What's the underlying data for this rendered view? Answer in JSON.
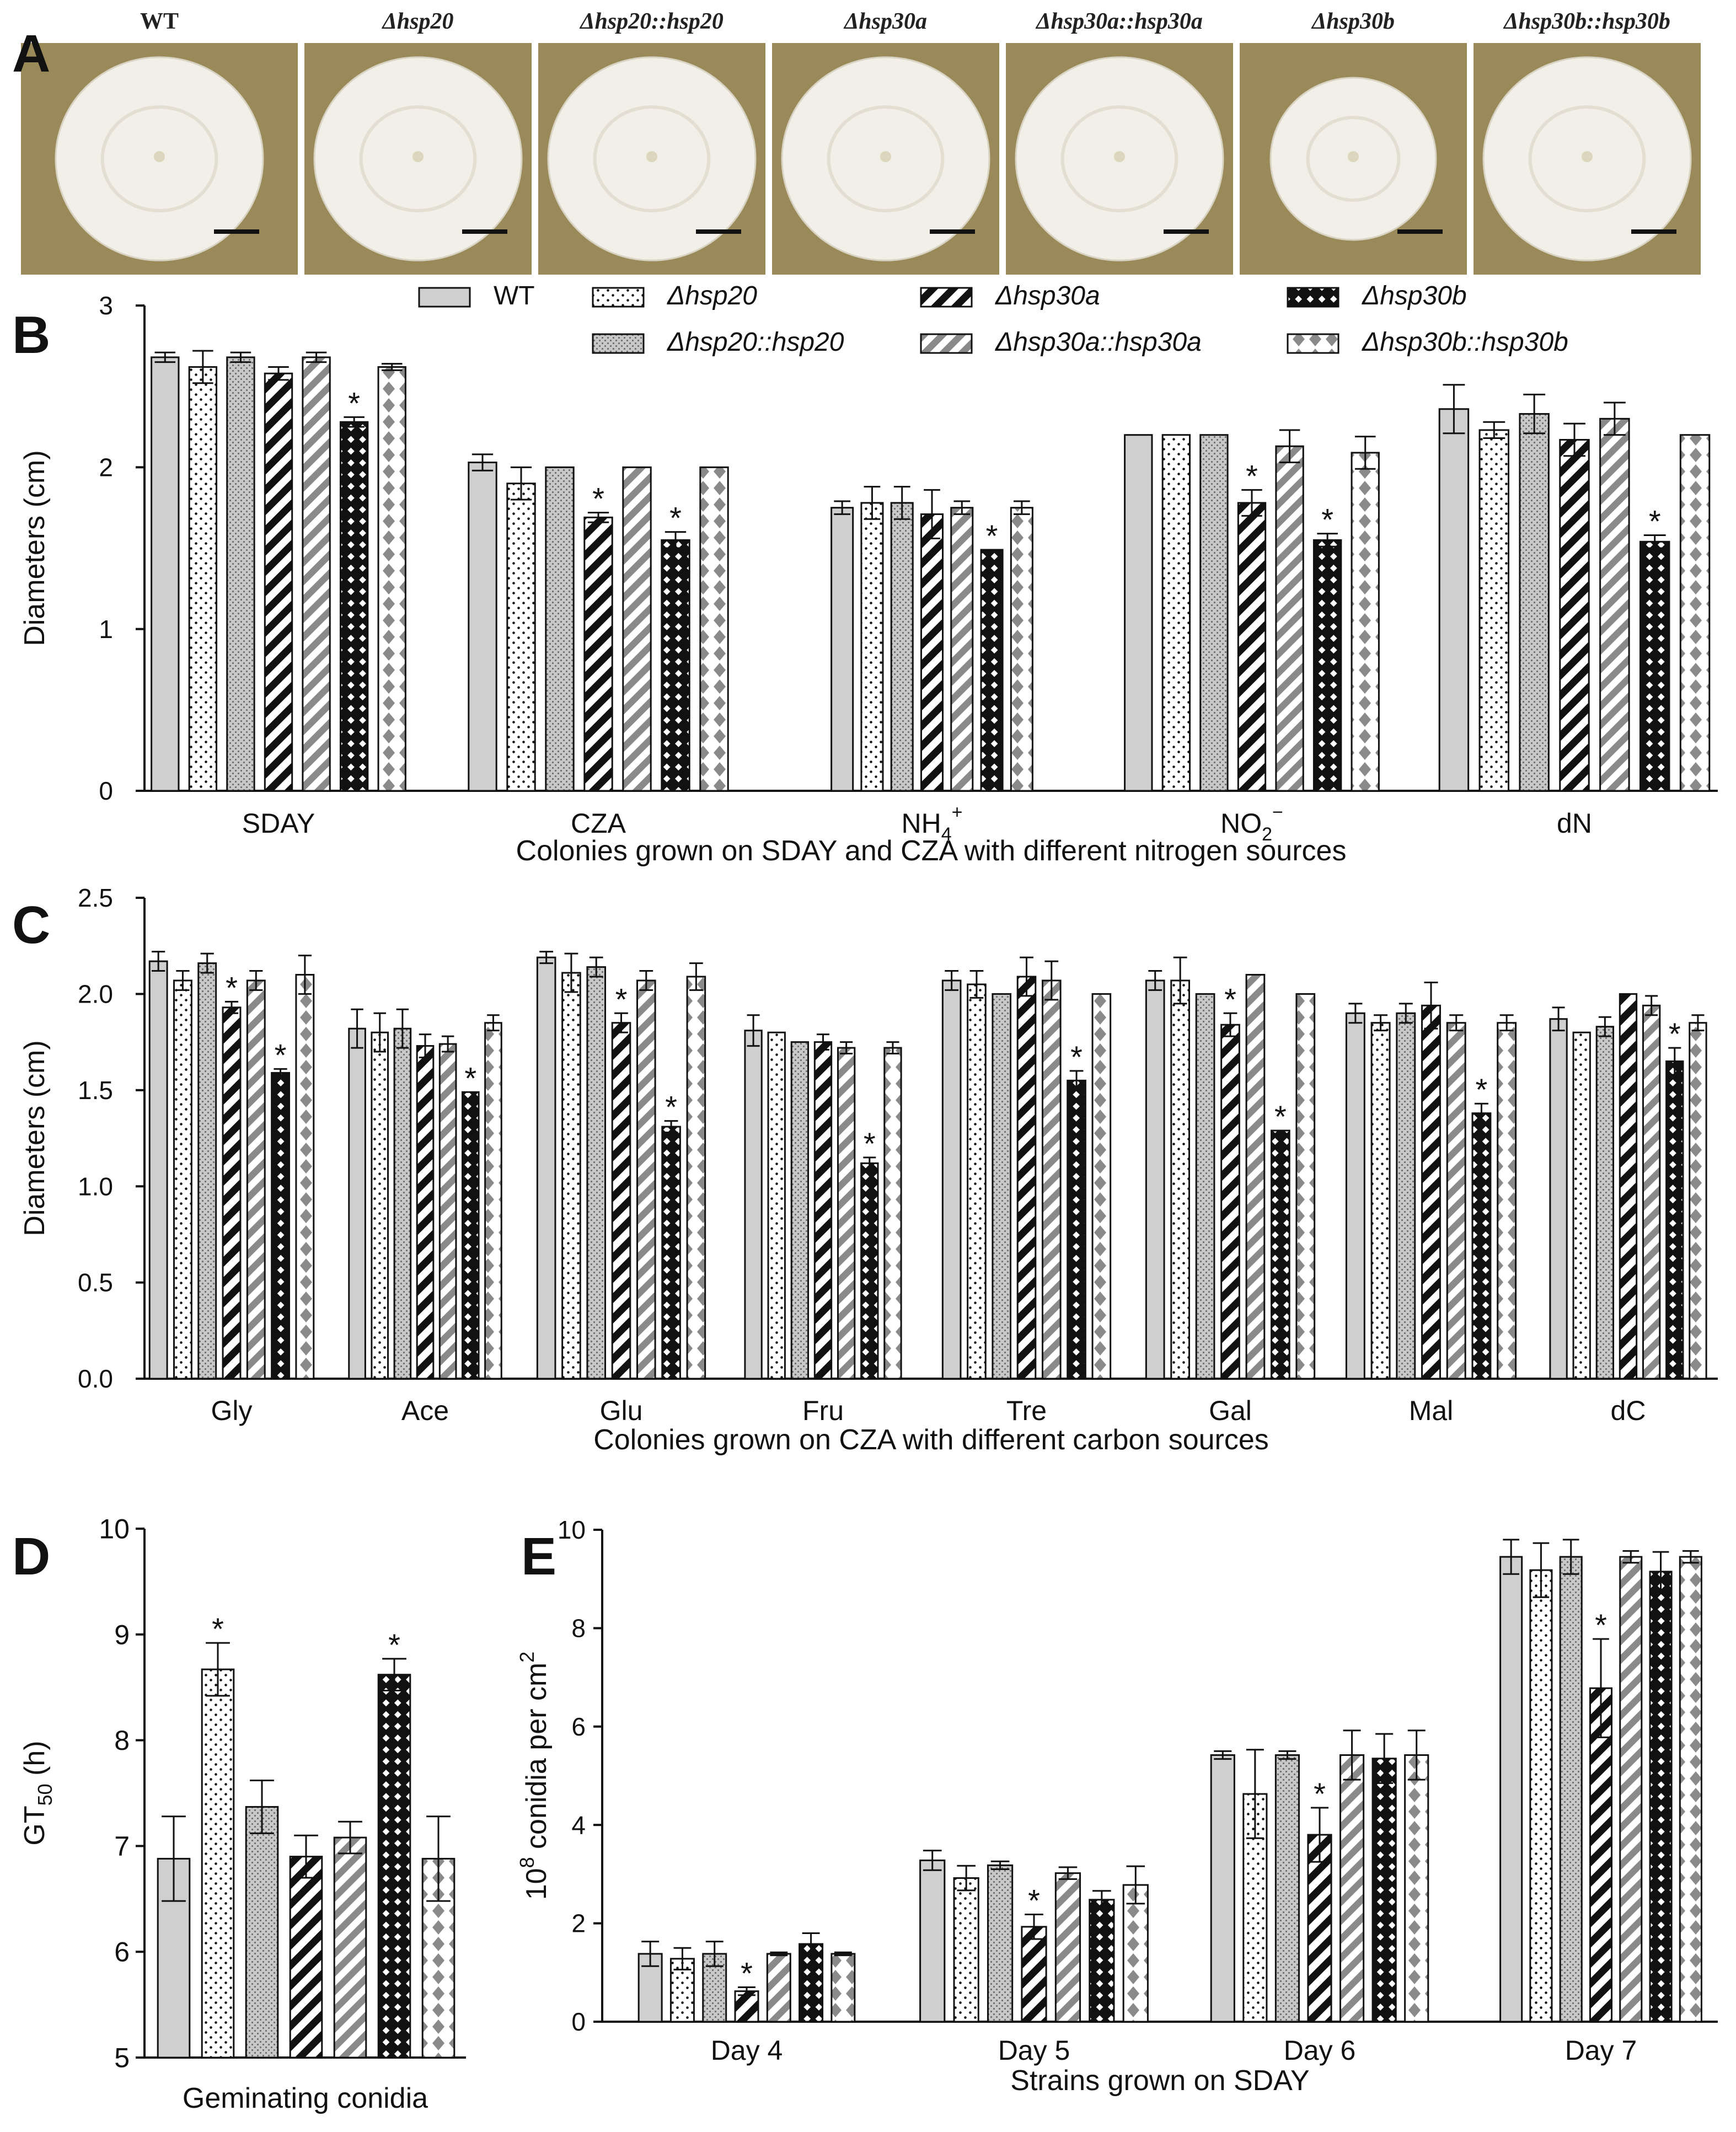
{
  "strains": [
    "WT",
    "Δhsp20",
    "Δhsp20::hsp20",
    "Δhsp30a",
    "Δhsp30a::hsp30a",
    "Δhsp30b",
    "Δhsp30b::hsp30b"
  ],
  "panel_labels": {
    "A": "A",
    "B": "B",
    "C": "C",
    "D": "D",
    "E": "E"
  },
  "photos": {
    "labels": [
      "WT",
      "Δhsp20",
      "Δhsp20::hsp20",
      "Δhsp30a",
      "Δhsp30a::hsp30a",
      "Δhsp30b",
      "Δhsp30b::hsp30b"
    ],
    "colors": {
      "background": "#9a8a5a",
      "colony": "#f1efe8",
      "scale_bar": "#111111"
    }
  },
  "styles": {
    "fills": [
      "#cfcfcf",
      "#ffffff",
      "#c8c8c8",
      "#ffffff",
      "#ffffff",
      "#111111",
      "#ffffff"
    ],
    "patterns": [
      "solid",
      "dots",
      "dots-dense",
      "hatch-black",
      "hatch-gray",
      "checker",
      "diamonds-gray"
    ],
    "accent_gray": "#8a8a8a",
    "asterisk": "*"
  },
  "chart_data": [
    {
      "id": "B",
      "type": "bar",
      "xlabel": "Colonies grown on SDAY and CZA with different nitrogen sources",
      "ylabel": "Diameters (cm)",
      "ylim": [
        0,
        3
      ],
      "yticks": [
        "0",
        "1",
        "2",
        "3"
      ],
      "categories": [
        "SDAY",
        "CZA",
        "NH4+",
        "NO2−",
        "dN"
      ],
      "category_display": [
        {
          "base": "SDAY",
          "sub": "",
          "sup": ""
        },
        {
          "base": "CZA",
          "sub": "",
          "sup": ""
        },
        {
          "base": "NH",
          "sub": "4",
          "sup": "+"
        },
        {
          "base": "NO",
          "sub": "2",
          "sup": "−"
        },
        {
          "base": "dN",
          "sub": "",
          "sup": ""
        }
      ],
      "legend": [
        "WT",
        "Δhsp20",
        "Δhsp30a",
        "Δhsp30b",
        "Δhsp20::hsp20",
        "Δhsp30a::hsp30a",
        "Δhsp30b::hsp30b"
      ],
      "series": [
        {
          "name": "WT",
          "values": [
            2.68,
            2.03,
            1.75,
            2.2,
            2.36
          ],
          "errors": [
            0.03,
            0.05,
            0.04,
            0.0,
            0.15
          ]
        },
        {
          "name": "Δhsp20",
          "values": [
            2.62,
            1.9,
            1.78,
            2.2,
            2.23
          ],
          "errors": [
            0.1,
            0.1,
            0.1,
            0.0,
            0.05
          ]
        },
        {
          "name": "Δhsp20::hsp20",
          "values": [
            2.68,
            2.0,
            1.78,
            2.2,
            2.33
          ],
          "errors": [
            0.03,
            0.0,
            0.1,
            0.0,
            0.12
          ]
        },
        {
          "name": "Δhsp30a",
          "values": [
            2.58,
            1.69,
            1.71,
            1.78,
            2.17
          ],
          "errors": [
            0.04,
            0.03,
            0.15,
            0.08,
            0.1
          ]
        },
        {
          "name": "Δhsp30a::hsp30a",
          "values": [
            2.68,
            2.0,
            1.75,
            2.13,
            2.3
          ],
          "errors": [
            0.03,
            0.0,
            0.04,
            0.1,
            0.1
          ]
        },
        {
          "name": "Δhsp30b",
          "values": [
            2.28,
            1.55,
            1.49,
            1.55,
            1.54
          ],
          "errors": [
            0.03,
            0.05,
            0.0,
            0.04,
            0.04
          ]
        },
        {
          "name": "Δhsp30b::hsp30b",
          "values": [
            2.62,
            2.0,
            1.75,
            2.09,
            2.2
          ],
          "errors": [
            0.02,
            0.0,
            0.04,
            0.1,
            0.0
          ]
        }
      ],
      "significant": [
        [
          5,
          0
        ],
        [
          3,
          1
        ],
        [
          5,
          1
        ],
        [
          5,
          2
        ],
        [
          3,
          3
        ],
        [
          5,
          3
        ],
        [
          5,
          4
        ]
      ]
    },
    {
      "id": "C",
      "type": "bar",
      "xlabel": "Colonies grown on CZA with different carbon sources",
      "ylabel": "Diameters (cm)",
      "ylim": [
        0,
        2.5
      ],
      "yticks": [
        "0.0",
        "0.5",
        "1.0",
        "1.5",
        "2.0",
        "2.5"
      ],
      "categories": [
        "Gly",
        "Ace",
        "Glu",
        "Fru",
        "Tre",
        "Gal",
        "Mal",
        "dC"
      ],
      "series": [
        {
          "name": "WT",
          "values": [
            2.17,
            1.82,
            2.19,
            1.81,
            2.07,
            2.07,
            1.9,
            1.87
          ],
          "errors": [
            0.05,
            0.1,
            0.03,
            0.08,
            0.05,
            0.05,
            0.05,
            0.06
          ]
        },
        {
          "name": "Δhsp20",
          "values": [
            2.07,
            1.8,
            2.11,
            1.8,
            2.05,
            2.07,
            1.85,
            1.8
          ],
          "errors": [
            0.05,
            0.1,
            0.1,
            0.0,
            0.07,
            0.12,
            0.04,
            0.0
          ]
        },
        {
          "name": "Δhsp20::hsp20",
          "values": [
            2.16,
            1.82,
            2.14,
            1.75,
            2.0,
            2.0,
            1.9,
            1.83
          ],
          "errors": [
            0.05,
            0.1,
            0.05,
            0.0,
            0.0,
            0.0,
            0.05,
            0.05
          ]
        },
        {
          "name": "Δhsp30a",
          "values": [
            1.93,
            1.73,
            1.85,
            1.75,
            2.09,
            1.84,
            1.94,
            2.0
          ],
          "errors": [
            0.03,
            0.06,
            0.05,
            0.04,
            0.1,
            0.06,
            0.12,
            0.0
          ]
        },
        {
          "name": "Δhsp30a::hsp30a",
          "values": [
            2.07,
            1.74,
            2.07,
            1.72,
            2.07,
            2.1,
            1.85,
            1.94
          ],
          "errors": [
            0.05,
            0.04,
            0.05,
            0.03,
            0.1,
            0.0,
            0.04,
            0.05
          ]
        },
        {
          "name": "Δhsp30b",
          "values": [
            1.59,
            1.49,
            1.31,
            1.12,
            1.55,
            1.29,
            1.38,
            1.65
          ],
          "errors": [
            0.02,
            0.0,
            0.03,
            0.03,
            0.05,
            0.0,
            0.05,
            0.07
          ]
        },
        {
          "name": "Δhsp30b::hsp30b",
          "values": [
            2.1,
            1.85,
            2.09,
            1.72,
            2.0,
            2.0,
            1.85,
            1.85
          ],
          "errors": [
            0.1,
            0.04,
            0.07,
            0.03,
            0.0,
            0.0,
            0.04,
            0.04
          ]
        }
      ],
      "significant": [
        [
          3,
          0
        ],
        [
          5,
          0
        ],
        [
          5,
          1
        ],
        [
          3,
          2
        ],
        [
          5,
          2
        ],
        [
          5,
          3
        ],
        [
          5,
          4
        ],
        [
          3,
          5
        ],
        [
          5,
          5
        ],
        [
          5,
          6
        ],
        [
          5,
          7
        ]
      ]
    },
    {
      "id": "D",
      "type": "bar",
      "xlabel": "Geminating conidia",
      "ylabel": "GT50 (h)",
      "ylabel_display": {
        "base": "GT",
        "sub": "50",
        "after": " (h)"
      },
      "ylim": [
        5,
        10
      ],
      "yticks": [
        "5",
        "6",
        "7",
        "8",
        "9",
        "10"
      ],
      "categories": [
        "Geminating conidia"
      ],
      "series": [
        {
          "name": "WT",
          "values": [
            6.88
          ],
          "errors": [
            0.4
          ]
        },
        {
          "name": "Δhsp20",
          "values": [
            8.67
          ],
          "errors": [
            0.25
          ]
        },
        {
          "name": "Δhsp20::hsp20",
          "values": [
            7.37
          ],
          "errors": [
            0.25
          ]
        },
        {
          "name": "Δhsp30a",
          "values": [
            6.9
          ],
          "errors": [
            0.2
          ]
        },
        {
          "name": "Δhsp30a::hsp30a",
          "values": [
            7.08
          ],
          "errors": [
            0.15
          ]
        },
        {
          "name": "Δhsp30b",
          "values": [
            8.62
          ],
          "errors": [
            0.15
          ]
        },
        {
          "name": "Δhsp30b::hsp30b",
          "values": [
            6.88
          ],
          "errors": [
            0.4
          ]
        }
      ],
      "significant": [
        [
          1,
          0
        ],
        [
          5,
          0
        ]
      ]
    },
    {
      "id": "E",
      "type": "bar",
      "xlabel": "Strains grown on SDAY",
      "ylabel": "10^8 conidia per cm^2",
      "ylabel_display": {
        "base": "10",
        "sup1": "8",
        "mid": " conidia per cm",
        "sup2": "2"
      },
      "ylim": [
        0,
        10
      ],
      "yticks": [
        "0",
        "2",
        "4",
        "6",
        "8",
        "10"
      ],
      "categories": [
        "Day 4",
        "Day 5",
        "Day 6",
        "Day 7"
      ],
      "series": [
        {
          "name": "WT",
          "values": [
            1.38,
            3.28,
            5.42,
            9.45
          ],
          "errors": [
            0.25,
            0.2,
            0.08,
            0.35
          ]
        },
        {
          "name": "Δhsp20",
          "values": [
            1.28,
            2.92,
            4.63,
            9.18
          ],
          "errors": [
            0.22,
            0.25,
            0.9,
            0.55
          ]
        },
        {
          "name": "Δhsp20::hsp20",
          "values": [
            1.38,
            3.18,
            5.42,
            9.45
          ],
          "errors": [
            0.25,
            0.08,
            0.08,
            0.35
          ]
        },
        {
          "name": "Δhsp30a",
          "values": [
            0.62,
            1.93,
            3.8,
            6.78
          ],
          "errors": [
            0.08,
            0.25,
            0.55,
            1.0
          ]
        },
        {
          "name": "Δhsp30a::hsp30a",
          "values": [
            1.38,
            3.02,
            5.42,
            9.45
          ],
          "errors": [
            0.03,
            0.12,
            0.5,
            0.12
          ]
        },
        {
          "name": "Δhsp30b",
          "values": [
            1.58,
            2.48,
            5.35,
            9.15
          ],
          "errors": [
            0.22,
            0.18,
            0.5,
            0.4
          ]
        },
        {
          "name": "Δhsp30b::hsp30b",
          "values": [
            1.38,
            2.78,
            5.42,
            9.45
          ],
          "errors": [
            0.03,
            0.38,
            0.5,
            0.12
          ]
        }
      ],
      "significant": [
        [
          3,
          0
        ],
        [
          3,
          1
        ],
        [
          3,
          2
        ],
        [
          3,
          3
        ]
      ]
    }
  ]
}
